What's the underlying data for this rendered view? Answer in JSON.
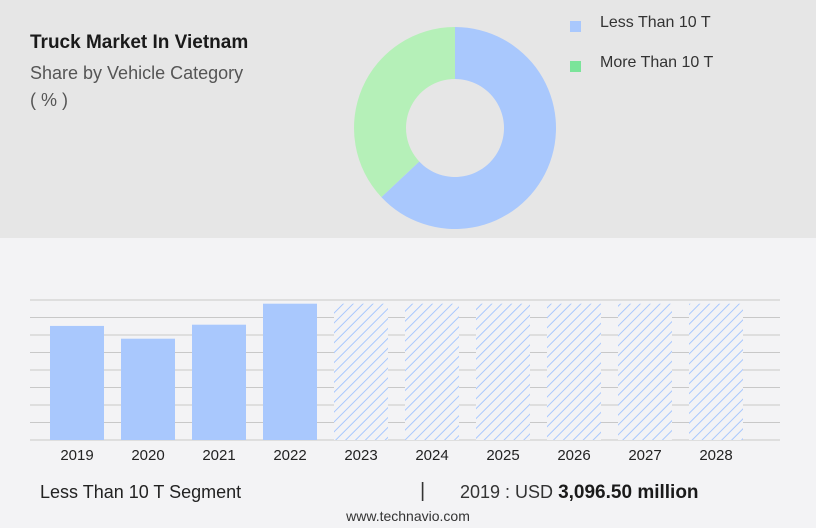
{
  "header": {
    "title": "Truck Market In Vietnam",
    "subtitle": "Share by Vehicle Category",
    "unit": "( % )"
  },
  "colors": {
    "less_than_10t": "#a9c8fd",
    "more_than_10t": "#b5f0b8",
    "legend_more_than_10t": "#7be49a",
    "grid": "#c8c8c8"
  },
  "chart_data": [
    {
      "type": "pie",
      "variant": "donut",
      "categories": [
        "Less Than 10 T",
        "More Than 10 T"
      ],
      "values": [
        63,
        37
      ],
      "legend": {
        "placement": "right",
        "labels": [
          "Less Than 10 T",
          "More Than 10 T"
        ]
      }
    },
    {
      "type": "bar",
      "categories": [
        "2019",
        "2020",
        "2021",
        "2022",
        "2023",
        "2024",
        "2025",
        "2026",
        "2027",
        "2028"
      ],
      "values": [
        3096.5,
        2750,
        3130,
        3700,
        3700,
        3700,
        3700,
        3700,
        3700,
        3700
      ],
      "forecast": [
        false,
        false,
        false,
        false,
        true,
        true,
        true,
        true,
        true,
        true
      ],
      "ylim": [
        0,
        3800
      ],
      "grid": true
    }
  ],
  "footer": {
    "segment": "Less Than 10 T Segment",
    "divider": "|",
    "year_label": "2019 : USD",
    "amount": "3,096.50 million",
    "source": "www.technavio.com"
  }
}
